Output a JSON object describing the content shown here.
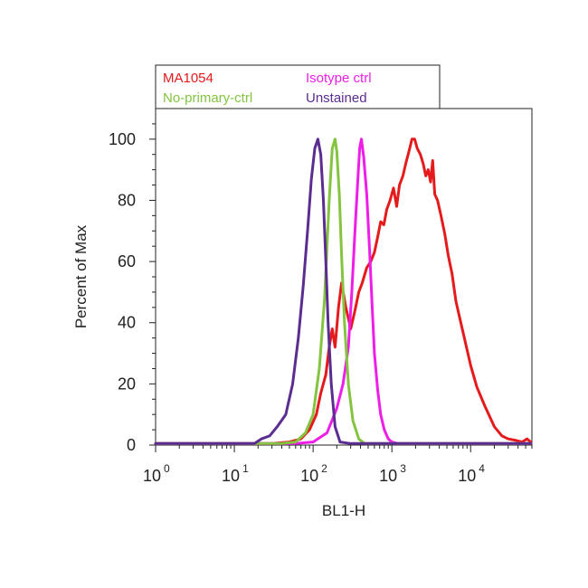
{
  "chart_data": {
    "type": "line",
    "xlabel": "BL1-H",
    "ylabel": "Percent of Max",
    "x_scale": "log",
    "xlim": [
      1,
      60000
    ],
    "ylim": [
      0,
      110
    ],
    "x_ticks": [
      {
        "base": "10",
        "exp": "0",
        "value": 1
      },
      {
        "base": "10",
        "exp": "1",
        "value": 10
      },
      {
        "base": "10",
        "exp": "2",
        "value": 100
      },
      {
        "base": "10",
        "exp": "3",
        "value": 1000
      },
      {
        "base": "10",
        "exp": "4",
        "value": 10000
      }
    ],
    "y_ticks": [
      0,
      20,
      40,
      60,
      80,
      100
    ],
    "legend_position": "top",
    "series": [
      {
        "name": "MA1054",
        "color": "#e41a1c",
        "x": [
          1,
          10,
          30,
          50,
          70,
          90,
          110,
          125,
          145,
          160,
          175,
          190,
          210,
          230,
          260,
          300,
          340,
          380,
          420,
          480,
          540,
          600,
          660,
          720,
          790,
          860,
          950,
          1050,
          1150,
          1250,
          1380,
          1500,
          1650,
          1800,
          1950,
          2100,
          2300,
          2500,
          2700,
          2900,
          3100,
          3300,
          3500,
          3800,
          4200,
          4700,
          5200,
          5800,
          6500,
          7500,
          8500,
          10000,
          12000,
          15000,
          20000,
          25000,
          30000,
          38000,
          45000,
          52000,
          58000
        ],
        "y": [
          0.5,
          0.5,
          0.5,
          1,
          2,
          5,
          10,
          17,
          23,
          32,
          38,
          32,
          45,
          53,
          45,
          38,
          44,
          50,
          53,
          58,
          60,
          63,
          68,
          73,
          72,
          77,
          80,
          84,
          78,
          85,
          88,
          92,
          96,
          100,
          100,
          97,
          95,
          92,
          88,
          90,
          86,
          93,
          82,
          80,
          75,
          69,
          62,
          56,
          47,
          40,
          34,
          26,
          19,
          13,
          6,
          3,
          2,
          1.5,
          1,
          2,
          1
        ]
      },
      {
        "name": "Isotype ctrl",
        "color": "#ee1de8",
        "x": [
          1,
          60,
          100,
          150,
          200,
          240,
          280,
          310,
          340,
          370,
          390,
          410,
          440,
          480,
          520,
          560,
          600,
          660,
          720,
          800,
          900,
          1000,
          1200,
          2000,
          5000,
          58000
        ],
        "y": [
          0.5,
          0.5,
          1,
          4,
          12,
          20,
          32,
          50,
          70,
          87,
          97,
          100,
          94,
          82,
          64,
          46,
          30,
          18,
          10,
          5,
          2,
          1,
          0.5,
          0.5,
          0.5,
          0.5
        ]
      },
      {
        "name": "No-primary-ctrl",
        "color": "#84c441",
        "x": [
          1,
          40,
          60,
          80,
          100,
          120,
          140,
          160,
          175,
          190,
          200,
          215,
          230,
          250,
          280,
          320,
          380,
          450,
          600,
          1000,
          58000
        ],
        "y": [
          0.5,
          0.5,
          1,
          4,
          10,
          25,
          48,
          80,
          97,
          100,
          96,
          82,
          62,
          40,
          20,
          8,
          2,
          0.5,
          0.5,
          0.5,
          0.5
        ]
      },
      {
        "name": "Unstained",
        "color": "#5c2d91",
        "x": [
          1,
          18,
          22,
          28,
          35,
          45,
          55,
          65,
          75,
          85,
          95,
          105,
          115,
          125,
          135,
          145,
          155,
          170,
          190,
          220,
          300,
          58000
        ],
        "y": [
          0.5,
          0.5,
          2,
          3,
          6,
          10,
          20,
          35,
          52,
          70,
          87,
          97,
          100,
          95,
          80,
          60,
          40,
          20,
          6,
          1,
          0.5,
          0.5
        ]
      }
    ]
  }
}
